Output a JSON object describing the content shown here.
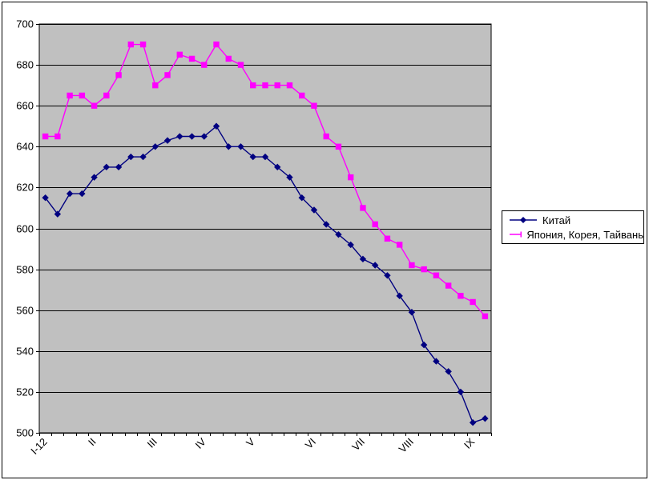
{
  "chart_data": {
    "type": "line",
    "title": "",
    "plot_bg_color": "#C0C0C0",
    "grid_color": "#000000",
    "axis_color": "#000000",
    "grid": "horizontal",
    "legend_position": "right",
    "ylim": [
      500,
      700
    ],
    "y_ticks": [
      500,
      520,
      540,
      560,
      580,
      600,
      620,
      640,
      660,
      680,
      700
    ],
    "n_points": 37,
    "x_axis_labels": [
      {
        "label": "I-12",
        "index": 0
      },
      {
        "label": "II",
        "index": 4
      },
      {
        "label": "III",
        "index": 9
      },
      {
        "label": "IV",
        "index": 13
      },
      {
        "label": "V",
        "index": 17
      },
      {
        "label": "VI",
        "index": 22
      },
      {
        "label": "VII",
        "index": 26
      },
      {
        "label": "VIII",
        "index": 30
      },
      {
        "label": "IX",
        "index": 35
      }
    ],
    "series": [
      {
        "name": "Китай",
        "color": "#000080",
        "marker": "diamond",
        "values": [
          615,
          607,
          617,
          617,
          625,
          630,
          630,
          635,
          635,
          640,
          643,
          645,
          645,
          645,
          650,
          640,
          640,
          635,
          635,
          630,
          625,
          615,
          609,
          602,
          597,
          592,
          585,
          582,
          577,
          567,
          559,
          543,
          535,
          530,
          520,
          505,
          507
        ]
      },
      {
        "name": "Япония, Корея, Тайвань",
        "color": "#FF00FF",
        "marker": "square",
        "values": [
          645,
          645,
          665,
          665,
          660,
          665,
          675,
          690,
          690,
          670,
          675,
          685,
          683,
          680,
          690,
          683,
          680,
          670,
          670,
          670,
          670,
          665,
          660,
          645,
          640,
          625,
          610,
          602,
          595,
          592,
          582,
          580,
          577,
          572,
          567,
          564,
          557
        ]
      }
    ]
  }
}
